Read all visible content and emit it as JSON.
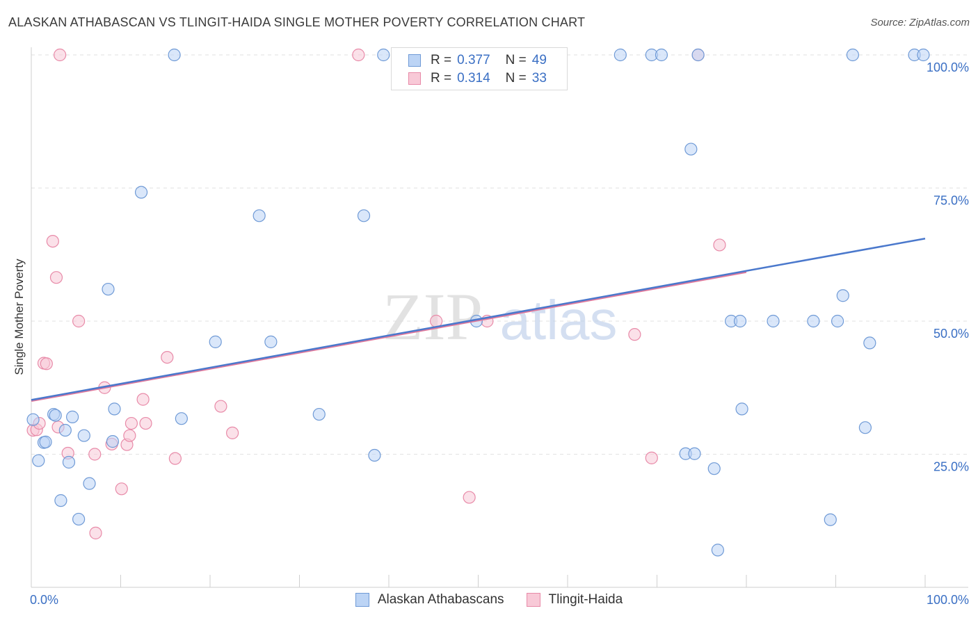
{
  "title": "ALASKAN ATHABASCAN VS TLINGIT-HAIDA SINGLE MOTHER POVERTY CORRELATION CHART",
  "source": "Source: ZipAtlas.com",
  "watermark": {
    "zip": "ZIP",
    "atlas": "atlas"
  },
  "legend_stats": [
    {
      "r_label": "R =",
      "r_value": "0.377",
      "n_label": "N =",
      "n_value": "49",
      "color": "#6f9ad6"
    },
    {
      "r_label": "R =",
      "r_value": "0.314",
      "n_label": "N =",
      "n_value": "33",
      "color": "#e88aa8"
    }
  ],
  "chart_data": {
    "type": "scatter",
    "title": "ALASKAN ATHABASCAN VS TLINGIT-HAIDA SINGLE MOTHER POVERTY CORRELATION CHART",
    "xlabel": "",
    "ylabel": "Single Mother Poverty",
    "xlim": [
      0,
      100
    ],
    "ylim": [
      0,
      100
    ],
    "x_tick_labels": [
      "0.0%",
      "100.0%"
    ],
    "y_tick_labels": [
      "25.0%",
      "50.0%",
      "75.0%",
      "100.0%"
    ],
    "legend_position": "bottom",
    "series": [
      {
        "name": "Alaskan Athabascans",
        "color": "#6f9ad6",
        "fill": "#bcd4f5",
        "r": 0.377,
        "n": 49,
        "trend": {
          "x": [
            0,
            100
          ],
          "y": [
            35.2,
            65.5
          ]
        },
        "points": [
          [
            0.2,
            31.5
          ],
          [
            0.8,
            23.8
          ],
          [
            1.4,
            27.2
          ],
          [
            1.6,
            27.3
          ],
          [
            2.5,
            32.5
          ],
          [
            2.7,
            32.3
          ],
          [
            3.8,
            29.5
          ],
          [
            4.2,
            23.5
          ],
          [
            4.6,
            32.0
          ],
          [
            3.3,
            16.3
          ],
          [
            5.3,
            12.8
          ],
          [
            5.9,
            28.5
          ],
          [
            6.5,
            19.5
          ],
          [
            8.6,
            56.0
          ],
          [
            9.1,
            27.4
          ],
          [
            9.3,
            33.5
          ],
          [
            12.3,
            74.2
          ],
          [
            16.0,
            100
          ],
          [
            16.8,
            31.7
          ],
          [
            20.6,
            46.1
          ],
          [
            25.5,
            69.8
          ],
          [
            26.8,
            46.1
          ],
          [
            32.2,
            32.5
          ],
          [
            37.2,
            69.8
          ],
          [
            38.4,
            24.8
          ],
          [
            39.4,
            100
          ],
          [
            49.8,
            50.0
          ],
          [
            65.9,
            100
          ],
          [
            69.4,
            100
          ],
          [
            70.5,
            100
          ],
          [
            73.8,
            82.3
          ],
          [
            73.2,
            25.1
          ],
          [
            74.2,
            25.1
          ],
          [
            74.6,
            100
          ],
          [
            76.4,
            22.3
          ],
          [
            76.8,
            7.0
          ],
          [
            78.3,
            50.0
          ],
          [
            79.3,
            50.0
          ],
          [
            79.5,
            33.5
          ],
          [
            83.0,
            50.0
          ],
          [
            87.5,
            50.0
          ],
          [
            89.4,
            12.7
          ],
          [
            90.2,
            50.0
          ],
          [
            90.8,
            54.8
          ],
          [
            91.9,
            100
          ],
          [
            93.3,
            30.0
          ],
          [
            93.8,
            45.9
          ],
          [
            98.8,
            100
          ],
          [
            99.8,
            100
          ]
        ]
      },
      {
        "name": "Tlingit-Haida",
        "color": "#e88aa8",
        "fill": "#f8c9d7",
        "r": 0.314,
        "n": 33,
        "trend": {
          "x": [
            0,
            80
          ],
          "y": [
            35.0,
            59.2
          ]
        },
        "points": [
          [
            0.2,
            29.5
          ],
          [
            0.6,
            29.6
          ],
          [
            0.9,
            30.8
          ],
          [
            1.4,
            42.1
          ],
          [
            1.7,
            42.0
          ],
          [
            2.4,
            65.0
          ],
          [
            2.8,
            58.2
          ],
          [
            3.0,
            30.1
          ],
          [
            3.2,
            100
          ],
          [
            4.1,
            25.2
          ],
          [
            5.3,
            50.0
          ],
          [
            7.1,
            25.0
          ],
          [
            7.2,
            10.2
          ],
          [
            8.2,
            37.5
          ],
          [
            9.0,
            26.9
          ],
          [
            10.1,
            18.5
          ],
          [
            10.7,
            26.8
          ],
          [
            11.0,
            28.5
          ],
          [
            11.2,
            30.8
          ],
          [
            12.5,
            35.3
          ],
          [
            12.8,
            30.8
          ],
          [
            15.2,
            43.2
          ],
          [
            16.1,
            24.2
          ],
          [
            21.2,
            34.0
          ],
          [
            22.5,
            29.0
          ],
          [
            36.6,
            100
          ],
          [
            45.3,
            50.0
          ],
          [
            49.0,
            16.9
          ],
          [
            51.0,
            50.0
          ],
          [
            67.5,
            47.5
          ],
          [
            69.4,
            24.3
          ],
          [
            74.6,
            100
          ],
          [
            77.0,
            64.3
          ]
        ]
      }
    ]
  }
}
